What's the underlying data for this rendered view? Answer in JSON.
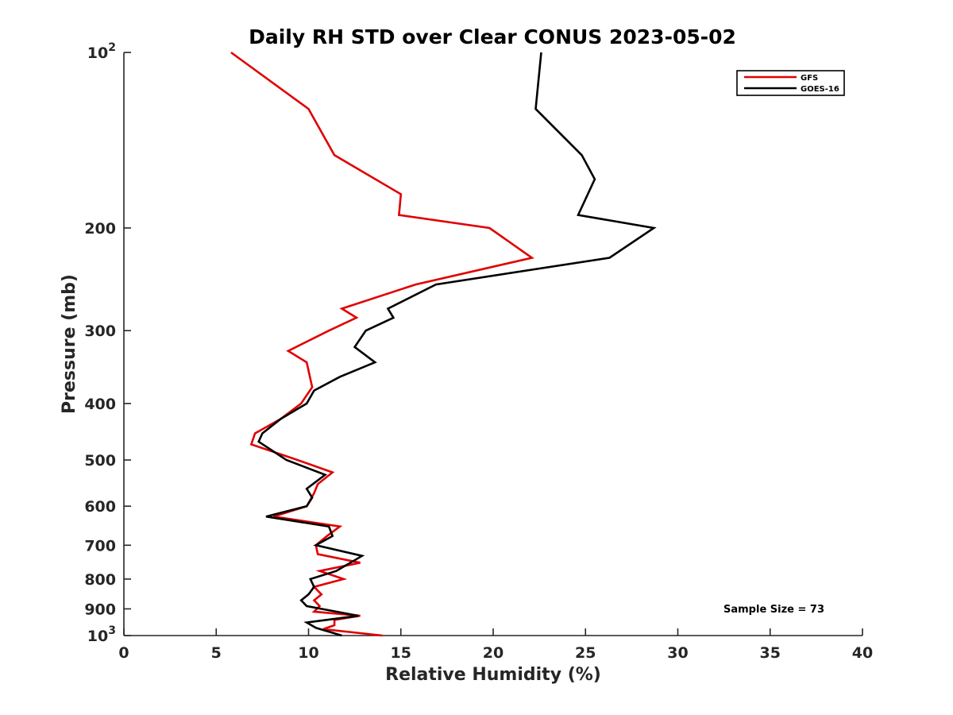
{
  "chart_data": {
    "type": "line",
    "title": "Daily RH STD over Clear CONUS 2023-05-02",
    "xlabel": "Relative Humidity (%)",
    "ylabel": "Pressure (mb)",
    "xlim": [
      0,
      40
    ],
    "ylim": [
      100,
      1000
    ],
    "y_scale": "log",
    "y_reversed": true,
    "x_ticks": [
      "0",
      "5",
      "10",
      "15",
      "20",
      "25",
      "30",
      "35",
      "40"
    ],
    "y_ticks": [
      {
        "value": 100,
        "base": "10",
        "exp": "2"
      },
      {
        "value": 200,
        "label": "200"
      },
      {
        "value": 300,
        "label": "300"
      },
      {
        "value": 400,
        "label": "400"
      },
      {
        "value": 500,
        "label": "500"
      },
      {
        "value": 600,
        "label": "600"
      },
      {
        "value": 700,
        "label": "700"
      },
      {
        "value": 800,
        "label": "800"
      },
      {
        "value": 900,
        "label": "900"
      },
      {
        "value": 1000,
        "base": "10",
        "exp": "3"
      }
    ],
    "legend_position": "top-right",
    "grid": false,
    "annotation": "Sample Size = 73",
    "series": [
      {
        "name": "GFS",
        "color": "#e00000",
        "points": [
          [
            5.8,
            100
          ],
          [
            10.0,
            125
          ],
          [
            11.4,
            150
          ],
          [
            15.0,
            175
          ],
          [
            14.9,
            190
          ],
          [
            19.8,
            200
          ],
          [
            22.1,
            225
          ],
          [
            15.8,
            250
          ],
          [
            11.8,
            275
          ],
          [
            12.6,
            285
          ],
          [
            11.1,
            300
          ],
          [
            8.9,
            325
          ],
          [
            9.9,
            340
          ],
          [
            10.2,
            375
          ],
          [
            9.6,
            400
          ],
          [
            8.5,
            425
          ],
          [
            7.1,
            450
          ],
          [
            6.9,
            470
          ],
          [
            9.4,
            500
          ],
          [
            11.3,
            525
          ],
          [
            10.5,
            550
          ],
          [
            10.3,
            570
          ],
          [
            9.9,
            600
          ],
          [
            8.1,
            625
          ],
          [
            11.7,
            650
          ],
          [
            11.0,
            675
          ],
          [
            10.4,
            700
          ],
          [
            10.5,
            725
          ],
          [
            12.8,
            750
          ],
          [
            10.6,
            775
          ],
          [
            11.9,
            800
          ],
          [
            10.3,
            825
          ],
          [
            10.7,
            850
          ],
          [
            10.3,
            870
          ],
          [
            10.6,
            890
          ],
          [
            10.3,
            910
          ],
          [
            12.8,
            925
          ],
          [
            11.4,
            940
          ],
          [
            11.4,
            960
          ],
          [
            10.8,
            975
          ],
          [
            14.0,
            1000
          ]
        ]
      },
      {
        "name": "GOES-16",
        "color": "#000000",
        "points": [
          [
            22.6,
            100
          ],
          [
            22.3,
            125
          ],
          [
            24.8,
            150
          ],
          [
            25.5,
            165
          ],
          [
            24.6,
            190
          ],
          [
            28.7,
            200
          ],
          [
            26.3,
            225
          ],
          [
            16.9,
            250
          ],
          [
            14.3,
            275
          ],
          [
            14.6,
            285
          ],
          [
            13.1,
            300
          ],
          [
            12.5,
            320
          ],
          [
            13.6,
            340
          ],
          [
            11.7,
            360
          ],
          [
            10.3,
            380
          ],
          [
            9.9,
            400
          ],
          [
            8.5,
            425
          ],
          [
            7.5,
            450
          ],
          [
            7.3,
            465
          ],
          [
            8.8,
            500
          ],
          [
            10.9,
            530
          ],
          [
            9.9,
            560
          ],
          [
            10.2,
            580
          ],
          [
            9.9,
            600
          ],
          [
            7.7,
            625
          ],
          [
            11.1,
            650
          ],
          [
            11.3,
            675
          ],
          [
            10.4,
            700
          ],
          [
            12.9,
            730
          ],
          [
            11.5,
            775
          ],
          [
            10.1,
            800
          ],
          [
            10.3,
            825
          ],
          [
            10.0,
            850
          ],
          [
            9.6,
            870
          ],
          [
            9.9,
            890
          ],
          [
            12.7,
            925
          ],
          [
            9.9,
            950
          ],
          [
            10.4,
            970
          ],
          [
            11.8,
            1000
          ]
        ]
      }
    ]
  }
}
